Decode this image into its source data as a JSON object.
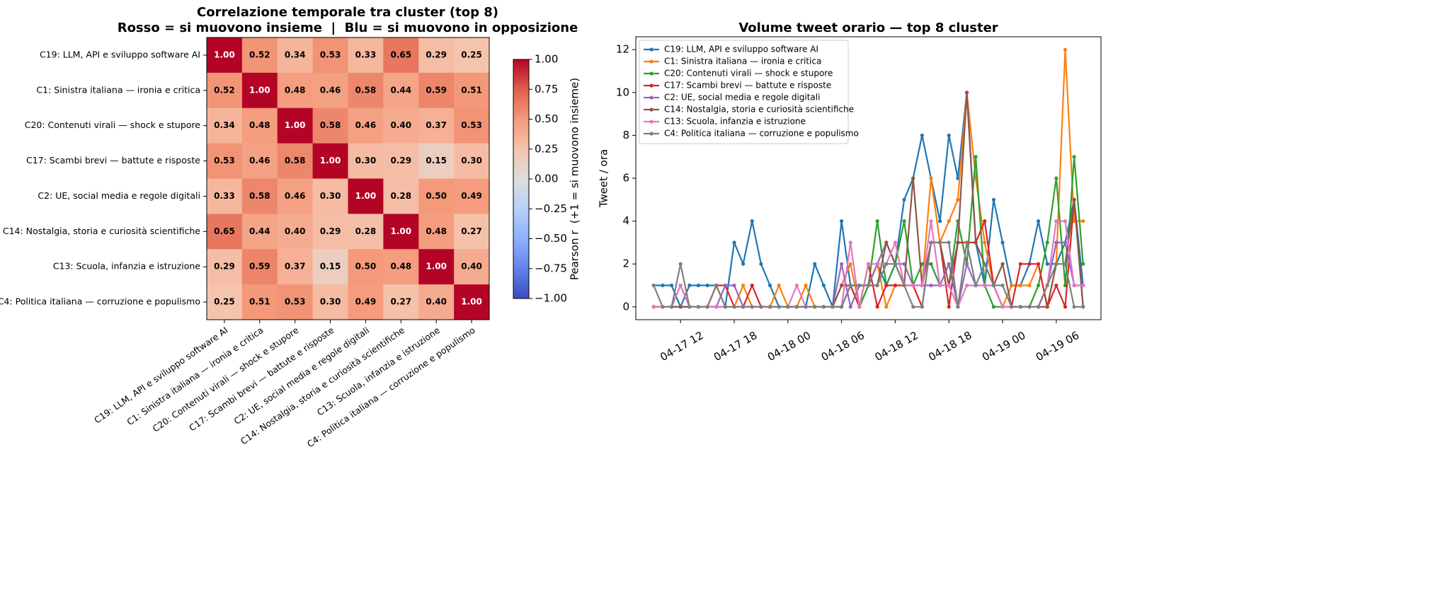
{
  "chart_data": [
    {
      "type": "heatmap",
      "title": "Correlazione temporale tra cluster (top 8)",
      "subtitle": "Rosso = si muovono insieme  |  Blu = si muovono in opposizione",
      "categories": [
        "C19: LLM, API e sviluppo software AI",
        "C1: Sinistra italiana — ironia e critica",
        "C20: Contenuti virali — shock e stupore",
        "C17: Scambi brevi — battute e risposte",
        "C2: UE, social media e regole digitali",
        "C14: Nostalgia, storia e curiosità scientifiche",
        "C13: Scuola, infanzia e istruzione",
        "C4: Politica italiana — corruzione e populismo"
      ],
      "values": [
        [
          1.0,
          0.52,
          0.34,
          0.53,
          0.33,
          0.65,
          0.29,
          0.25
        ],
        [
          0.52,
          1.0,
          0.48,
          0.46,
          0.58,
          0.44,
          0.59,
          0.51
        ],
        [
          0.34,
          0.48,
          1.0,
          0.58,
          0.46,
          0.4,
          0.37,
          0.53
        ],
        [
          0.53,
          0.46,
          0.58,
          1.0,
          0.3,
          0.29,
          0.15,
          0.3
        ],
        [
          0.33,
          0.58,
          0.46,
          0.3,
          1.0,
          0.28,
          0.5,
          0.49
        ],
        [
          0.65,
          0.44,
          0.4,
          0.29,
          0.28,
          1.0,
          0.48,
          0.27
        ],
        [
          0.29,
          0.59,
          0.37,
          0.15,
          0.5,
          0.48,
          1.0,
          0.4
        ],
        [
          0.25,
          0.51,
          0.53,
          0.3,
          0.49,
          0.27,
          0.4,
          1.0
        ]
      ],
      "value_labels": [
        [
          "1.00",
          "0.52",
          "0.34",
          "0.53",
          "0.33",
          "0.65",
          "0.29",
          "0.25"
        ],
        [
          "0.52",
          "1.00",
          "0.48",
          "0.46",
          "0.58",
          "0.44",
          "0.59",
          "0.51"
        ],
        [
          "0.34",
          "0.48",
          "1.00",
          "0.58",
          "0.46",
          "0.40",
          "0.37",
          "0.53"
        ],
        [
          "0.53",
          "0.46",
          "0.58",
          "1.00",
          "0.30",
          "0.29",
          "0.15",
          "0.30"
        ],
        [
          "0.33",
          "0.58",
          "0.46",
          "0.30",
          "1.00",
          "0.28",
          "0.50",
          "0.49"
        ],
        [
          "0.65",
          "0.44",
          "0.40",
          "0.29",
          "0.28",
          "1.00",
          "0.48",
          "0.27"
        ],
        [
          "0.29",
          "0.59",
          "0.37",
          "0.15",
          "0.50",
          "0.48",
          "1.00",
          "0.40"
        ],
        [
          "0.25",
          "0.51",
          "0.53",
          "0.30",
          "0.49",
          "0.27",
          "0.40",
          "1.00"
        ]
      ],
      "colormap": "coolwarm",
      "clim": [
        -1,
        1
      ],
      "colorbar_label": "Pearson r  (+1 = si muovono insieme)",
      "colorbar_ticks": [
        {
          "value": -1,
          "label": "−1.00"
        },
        {
          "value": -0.75,
          "label": "−0.75"
        },
        {
          "value": -0.5,
          "label": "−0.50"
        },
        {
          "value": -0.25,
          "label": "−0.25"
        },
        {
          "value": 0,
          "label": "0.00"
        },
        {
          "value": 0.25,
          "label": "0.25"
        },
        {
          "value": 0.5,
          "label": "0.50"
        },
        {
          "value": 0.75,
          "label": "0.75"
        },
        {
          "value": 1,
          "label": "1.00"
        }
      ]
    },
    {
      "type": "line",
      "title": "Volume tweet orario — top 8 cluster",
      "ylabel": "Tweet / ora",
      "x": [
        "04-17 09",
        "04-17 10",
        "04-17 11",
        "04-17 12",
        "04-17 13",
        "04-17 14",
        "04-17 15",
        "04-17 16",
        "04-17 17",
        "04-17 18",
        "04-17 19",
        "04-17 20",
        "04-17 21",
        "04-17 22",
        "04-17 23",
        "04-18 00",
        "04-18 01",
        "04-18 02",
        "04-18 03",
        "04-18 04",
        "04-18 05",
        "04-18 06",
        "04-18 07",
        "04-18 08",
        "04-18 09",
        "04-18 10",
        "04-18 11",
        "04-18 12",
        "04-18 13",
        "04-18 14",
        "04-18 15",
        "04-18 16",
        "04-18 17",
        "04-18 18",
        "04-18 19",
        "04-18 20",
        "04-18 21",
        "04-18 22",
        "04-18 23",
        "04-19 00",
        "04-19 01",
        "04-19 02",
        "04-19 03",
        "04-19 04",
        "04-19 05",
        "04-19 06",
        "04-19 07",
        "04-19 08",
        "04-19 09"
      ],
      "xlim": [
        "04-17 07",
        "04-19 11"
      ],
      "xticks": [
        "04-17 12",
        "04-17 18",
        "04-18 00",
        "04-18 06",
        "04-18 12",
        "04-18 18",
        "04-19 00",
        "04-19 06"
      ],
      "ylim": [
        -0.6,
        12.6
      ],
      "yticks": [
        0,
        2,
        4,
        6,
        8,
        10,
        12
      ],
      "legend": "upper left",
      "series": [
        {
          "name": "C19: LLM, API e sviluppo software AI",
          "color": "#1f77b4",
          "values": [
            1,
            1,
            1,
            0,
            1,
            1,
            1,
            1,
            0,
            3,
            2,
            4,
            2,
            1,
            0,
            0,
            0,
            0,
            2,
            1,
            0,
            4,
            1,
            1,
            1,
            2,
            1,
            2,
            5,
            6,
            8,
            6,
            4,
            8,
            6,
            10,
            3,
            1,
            5,
            3,
            1,
            1,
            2,
            4,
            2,
            2,
            3,
            5,
            1
          ]
        },
        {
          "name": "C1: Sinistra italiana — ironia e critica",
          "color": "#ff7f0e",
          "values": [
            0,
            0,
            0,
            0,
            0,
            0,
            0,
            1,
            0,
            0,
            1,
            0,
            0,
            0,
            1,
            0,
            0,
            1,
            0,
            0,
            0,
            1,
            2,
            0,
            1,
            2,
            0,
            1,
            1,
            1,
            1,
            6,
            3,
            4,
            5,
            10,
            6,
            3,
            1,
            0,
            1,
            1,
            1,
            2,
            0,
            2,
            12,
            4,
            4
          ]
        },
        {
          "name": "C20: Contenuti virali — shock e stupore",
          "color": "#2ca02c",
          "values": [
            0,
            0,
            0,
            0,
            0,
            0,
            0,
            0,
            0,
            0,
            0,
            0,
            0,
            0,
            0,
            0,
            0,
            0,
            0,
            0,
            0,
            0,
            1,
            0,
            1,
            4,
            1,
            2,
            4,
            1,
            2,
            2,
            1,
            1,
            4,
            2,
            7,
            1,
            0,
            0,
            0,
            0,
            0,
            1,
            3,
            6,
            1,
            7,
            2
          ]
        },
        {
          "name": "C17: Scambi brevi — battute e risposte",
          "color": "#d62728",
          "values": [
            0,
            0,
            0,
            0,
            0,
            0,
            0,
            1,
            1,
            0,
            0,
            1,
            0,
            0,
            0,
            0,
            0,
            0,
            0,
            0,
            0,
            0,
            1,
            0,
            2,
            0,
            1,
            1,
            1,
            1,
            0,
            3,
            3,
            0,
            3,
            3,
            3,
            4,
            1,
            0,
            0,
            2,
            2,
            2,
            0,
            1,
            0,
            5,
            0
          ]
        },
        {
          "name": "C2: UE, social media e regole digitali",
          "color": "#9467bd",
          "values": [
            0,
            0,
            0,
            1,
            0,
            0,
            0,
            0,
            1,
            1,
            0,
            0,
            0,
            0,
            0,
            0,
            0,
            0,
            0,
            0,
            0,
            2,
            0,
            1,
            1,
            2,
            3,
            2,
            2,
            1,
            1,
            1,
            1,
            2,
            0,
            2,
            1,
            1,
            1,
            0,
            0,
            0,
            0,
            0,
            1,
            3,
            3,
            1,
            1
          ]
        },
        {
          "name": "C14: Nostalgia, storia e curiosità scientifiche",
          "color": "#8c564b",
          "values": [
            0,
            0,
            0,
            0,
            0,
            0,
            0,
            0,
            0,
            0,
            0,
            0,
            0,
            0,
            0,
            0,
            0,
            0,
            0,
            0,
            0,
            1,
            1,
            1,
            1,
            1,
            3,
            2,
            1,
            6,
            1,
            3,
            3,
            1,
            3,
            10,
            3,
            2,
            1,
            2,
            0,
            0,
            0,
            0,
            0,
            2,
            2,
            5,
            0
          ]
        },
        {
          "name": "C13: Scuola, infanzia e istruzione",
          "color": "#e377c2",
          "values": [
            0,
            0,
            0,
            1,
            0,
            0,
            0,
            0,
            0,
            0,
            0,
            0,
            0,
            0,
            0,
            0,
            1,
            0,
            0,
            0,
            0,
            0,
            3,
            0,
            2,
            2,
            2,
            3,
            1,
            1,
            1,
            4,
            1,
            1,
            0,
            1,
            1,
            1,
            1,
            0,
            0,
            0,
            0,
            0,
            1,
            4,
            4,
            1,
            1
          ]
        },
        {
          "name": "C4: Politica italiana — corruzione e populismo",
          "color": "#7f7f7f",
          "values": [
            1,
            0,
            0,
            2,
            0,
            0,
            0,
            1,
            0,
            0,
            0,
            0,
            0,
            0,
            0,
            0,
            0,
            0,
            0,
            0,
            0,
            0,
            1,
            1,
            1,
            1,
            2,
            2,
            1,
            0,
            0,
            3,
            3,
            3,
            0,
            3,
            1,
            2,
            1,
            1,
            0,
            0,
            0,
            0,
            1,
            2,
            2,
            0,
            0
          ]
        }
      ]
    }
  ]
}
